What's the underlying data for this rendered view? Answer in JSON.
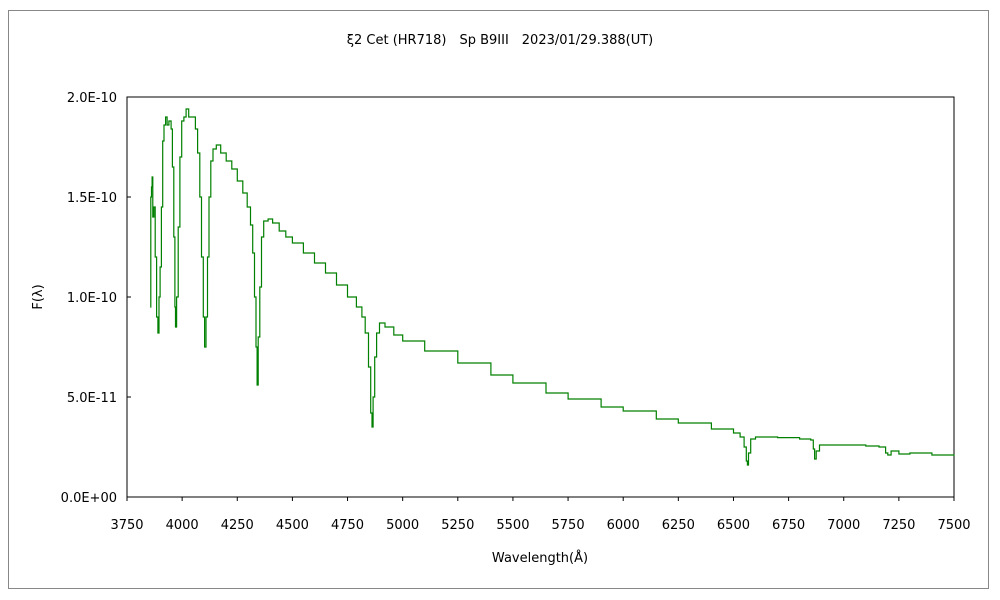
{
  "chart_data": {
    "type": "line",
    "title": "ξ2 Cet (HR718)　Sp B9III　2023/01/29.388(UT)",
    "xlabel": "Wavelength(Å)",
    "ylabel": "F(λ)",
    "xlim": [
      3750,
      7500
    ],
    "ylim": [
      0,
      2e-10
    ],
    "x_ticks": [
      "3750",
      "4000",
      "4250",
      "4500",
      "4750",
      "5000",
      "5250",
      "5500",
      "5750",
      "6000",
      "6250",
      "6500",
      "6750",
      "7000",
      "7250",
      "7500"
    ],
    "y_ticks": [
      "0.0E+00",
      "5.0E-11",
      "1.0E-10",
      "1.5E-10",
      "2.0E-10"
    ],
    "grid": false,
    "series": [
      {
        "name": "spectrum",
        "color": "#008000",
        "y_unit": 1e-10,
        "points": [
          [
            3855,
            0.95
          ],
          [
            3858,
            1.5
          ],
          [
            3861,
            1.55
          ],
          [
            3864,
            1.6
          ],
          [
            3867,
            1.4
          ],
          [
            3872,
            1.45
          ],
          [
            3878,
            1.2
          ],
          [
            3884,
            0.9
          ],
          [
            3890,
            0.82
          ],
          [
            3895,
            1.0
          ],
          [
            3900,
            1.15
          ],
          [
            3906,
            1.45
          ],
          [
            3912,
            1.78
          ],
          [
            3918,
            1.86
          ],
          [
            3925,
            1.9
          ],
          [
            3932,
            1.86
          ],
          [
            3940,
            1.88
          ],
          [
            3950,
            1.84
          ],
          [
            3956,
            1.65
          ],
          [
            3962,
            1.3
          ],
          [
            3967,
            0.95
          ],
          [
            3970,
            0.85
          ],
          [
            3975,
            1.0
          ],
          [
            3982,
            1.35
          ],
          [
            3990,
            1.7
          ],
          [
            3998,
            1.88
          ],
          [
            4008,
            1.9
          ],
          [
            4018,
            1.94
          ],
          [
            4030,
            1.9
          ],
          [
            4045,
            1.9
          ],
          [
            4060,
            1.84
          ],
          [
            4070,
            1.72
          ],
          [
            4080,
            1.5
          ],
          [
            4088,
            1.2
          ],
          [
            4096,
            0.9
          ],
          [
            4102,
            0.75
          ],
          [
            4108,
            0.9
          ],
          [
            4115,
            1.2
          ],
          [
            4122,
            1.5
          ],
          [
            4130,
            1.68
          ],
          [
            4140,
            1.74
          ],
          [
            4155,
            1.76
          ],
          [
            4175,
            1.72
          ],
          [
            4200,
            1.68
          ],
          [
            4225,
            1.64
          ],
          [
            4250,
            1.58
          ],
          [
            4275,
            1.52
          ],
          [
            4295,
            1.45
          ],
          [
            4310,
            1.36
          ],
          [
            4320,
            1.22
          ],
          [
            4328,
            1.0
          ],
          [
            4335,
            0.75
          ],
          [
            4340,
            0.56
          ],
          [
            4345,
            0.8
          ],
          [
            4352,
            1.05
          ],
          [
            4360,
            1.3
          ],
          [
            4370,
            1.38
          ],
          [
            4390,
            1.39
          ],
          [
            4410,
            1.37
          ],
          [
            4440,
            1.33
          ],
          [
            4470,
            1.3
          ],
          [
            4500,
            1.27
          ],
          [
            4550,
            1.22
          ],
          [
            4600,
            1.17
          ],
          [
            4650,
            1.12
          ],
          [
            4700,
            1.06
          ],
          [
            4750,
            1.0
          ],
          [
            4790,
            0.95
          ],
          [
            4815,
            0.9
          ],
          [
            4830,
            0.82
          ],
          [
            4845,
            0.65
          ],
          [
            4855,
            0.42
          ],
          [
            4861,
            0.35
          ],
          [
            4866,
            0.5
          ],
          [
            4873,
            0.7
          ],
          [
            4882,
            0.82
          ],
          [
            4895,
            0.87
          ],
          [
            4920,
            0.85
          ],
          [
            4960,
            0.81
          ],
          [
            5000,
            0.78
          ],
          [
            5100,
            0.73
          ],
          [
            5250,
            0.67
          ],
          [
            5400,
            0.61
          ],
          [
            5500,
            0.57
          ],
          [
            5650,
            0.52
          ],
          [
            5750,
            0.49
          ],
          [
            5900,
            0.45
          ],
          [
            6000,
            0.43
          ],
          [
            6150,
            0.39
          ],
          [
            6250,
            0.37
          ],
          [
            6400,
            0.34
          ],
          [
            6500,
            0.32
          ],
          [
            6530,
            0.3
          ],
          [
            6548,
            0.25
          ],
          [
            6558,
            0.18
          ],
          [
            6563,
            0.16
          ],
          [
            6568,
            0.22
          ],
          [
            6578,
            0.29
          ],
          [
            6600,
            0.3
          ],
          [
            6700,
            0.297
          ],
          [
            6800,
            0.29
          ],
          [
            6850,
            0.285
          ],
          [
            6862,
            0.24
          ],
          [
            6868,
            0.19
          ],
          [
            6875,
            0.23
          ],
          [
            6890,
            0.26
          ],
          [
            7000,
            0.26
          ],
          [
            7100,
            0.255
          ],
          [
            7160,
            0.25
          ],
          [
            7190,
            0.22
          ],
          [
            7200,
            0.21
          ],
          [
            7215,
            0.23
          ],
          [
            7250,
            0.215
          ],
          [
            7300,
            0.22
          ],
          [
            7400,
            0.21
          ],
          [
            7500,
            0.205
          ]
        ]
      }
    ]
  }
}
